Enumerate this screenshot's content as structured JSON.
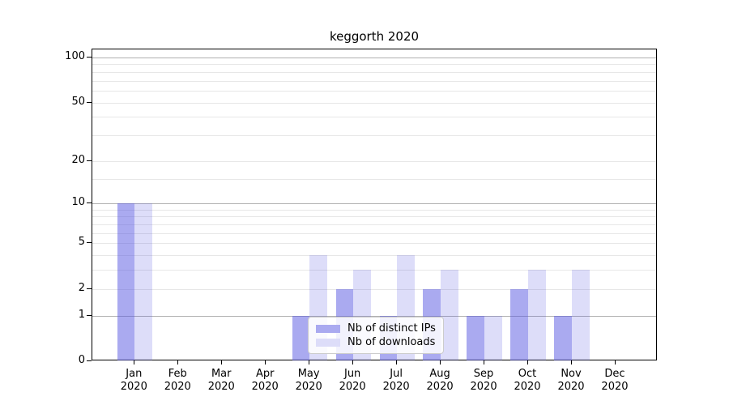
{
  "title": "keggorth 2020",
  "chart_data": {
    "type": "bar",
    "title": "keggorth 2020",
    "year": "2020",
    "months": [
      "Jan",
      "Feb",
      "Mar",
      "Apr",
      "May",
      "Jun",
      "Jul",
      "Aug",
      "Sep",
      "Oct",
      "Nov",
      "Dec"
    ],
    "categories": [
      "Jan 2020",
      "Feb 2020",
      "Mar 2020",
      "Apr 2020",
      "May 2020",
      "Jun 2020",
      "Jul 2020",
      "Aug 2020",
      "Sep 2020",
      "Oct 2020",
      "Nov 2020",
      "Dec 2020"
    ],
    "series": [
      {
        "name": "Nb of distinct IPs",
        "values": [
          10,
          0,
          0,
          0,
          1,
          2,
          1,
          2,
          1,
          2,
          1,
          0
        ],
        "fill": "rgba(85,85,225,0.5)",
        "swatch_color": "#aaaaf0"
      },
      {
        "name": "Nb of downloads",
        "values": [
          10,
          0,
          0,
          0,
          4,
          3,
          4,
          3,
          1,
          3,
          3,
          0
        ],
        "fill": "rgba(85,85,225,0.2)",
        "swatch_color": "#ddddf9"
      }
    ],
    "yscale": "log10(1+x)",
    "ylim": [
      0,
      113
    ],
    "y_major_ticks": [
      0,
      1,
      2,
      5,
      10,
      20,
      50,
      100
    ],
    "y_decade_gridlines": [
      1,
      10,
      100
    ],
    "y_light_gridlines": [
      2,
      3,
      4,
      5,
      6,
      7,
      8,
      9,
      15,
      20,
      30,
      40,
      50,
      60,
      70,
      80,
      90
    ],
    "grid": true,
    "legend_position": "lower center",
    "colors": {
      "bar_base": "#5555e1",
      "decade_grid": "#b0b0b0",
      "minor_grid": "#e7e7e7",
      "spine": "#000000",
      "text": "#000000"
    }
  }
}
